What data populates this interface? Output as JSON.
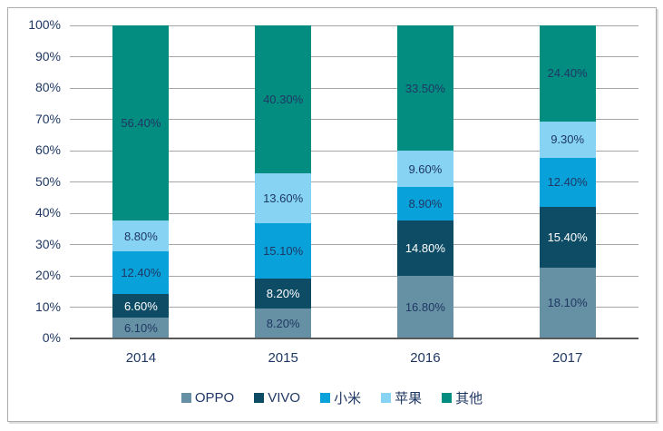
{
  "colors": {
    "text": "#1F3864",
    "grid": "#A6A6A6",
    "axis": "#595959",
    "frame": "#ACACAC",
    "background": "#FFFFFF"
  },
  "chart_data": {
    "type": "bar",
    "subtype": "stacked-100",
    "categories": [
      "2014",
      "2015",
      "2016",
      "2017"
    ],
    "series": [
      {
        "name": "OPPO",
        "color": "#6691A4",
        "label_color": "#1F3864",
        "values": [
          6.1,
          8.2,
          16.8,
          18.1
        ]
      },
      {
        "name": "VIVO",
        "color": "#0E4C66",
        "label_color": "#FFFFFF",
        "values": [
          6.6,
          8.2,
          14.8,
          15.4
        ]
      },
      {
        "name": "小米",
        "color": "#09A1D9",
        "label_color": "#1F3864",
        "values": [
          12.4,
          15.1,
          8.9,
          12.4
        ]
      },
      {
        "name": "苹果",
        "color": "#86D3F3",
        "label_color": "#1F3864",
        "values": [
          8.8,
          13.6,
          9.6,
          9.3
        ]
      },
      {
        "name": "其他",
        "color": "#038C80",
        "label_color": "#1F3864",
        "values": [
          56.4,
          40.3,
          33.5,
          24.4
        ]
      }
    ],
    "data_labels": [
      [
        "6.10%",
        "8.20%",
        "16.80%",
        "18.10%"
      ],
      [
        "6.60%",
        "8.20%",
        "14.80%",
        "15.40%"
      ],
      [
        "12.40%",
        "15.10%",
        "8.90%",
        "12.40%"
      ],
      [
        "8.80%",
        "13.60%",
        "9.60%",
        "9.30%"
      ],
      [
        "56.40%",
        "40.30%",
        "33.50%",
        "24.40%"
      ]
    ],
    "y_ticks": [
      "0%",
      "10%",
      "20%",
      "30%",
      "40%",
      "50%",
      "60%",
      "70%",
      "80%",
      "90%",
      "100%"
    ],
    "ylim": [
      0,
      100
    ],
    "grid": true,
    "legend_position": "bottom",
    "legend_items": [
      "OPPO",
      "VIVO",
      "小米",
      "苹果",
      "其他"
    ],
    "value_label_suffix": "%",
    "value_label_decimals": 2
  }
}
